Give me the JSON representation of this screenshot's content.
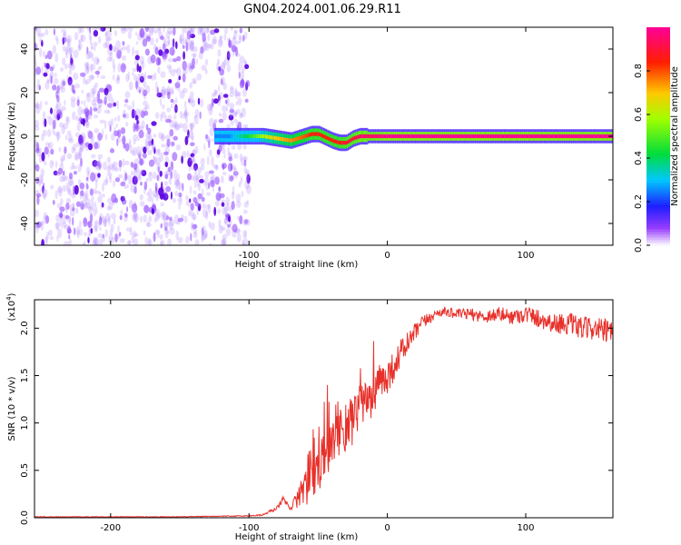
{
  "title": "GN04.2024.001.06.29.R11",
  "colors": {
    "snr_line": "#e8302a",
    "spectral_low": "#6a00ff",
    "spectral_core": "#e0003c",
    "axes": "#000000",
    "background": "#ffffff"
  },
  "chart_data": [
    {
      "type": "heatmap",
      "xlabel": "Height of straight line (km)",
      "ylabel": "Frequency (Hz)",
      "xlim": [
        -255,
        163
      ],
      "ylim": [
        -50,
        50
      ],
      "xticks": [
        -200,
        -100,
        0,
        100
      ],
      "yticks": [
        -40,
        -20,
        0,
        20,
        40
      ],
      "xtick_labels": [
        "-200",
        "-100",
        "0",
        "100"
      ],
      "ytick_labels": [
        "-40",
        "-20",
        "0",
        "20",
        "40"
      ],
      "noise_region_x": [
        -255,
        -100
      ],
      "ridge": {
        "frequency_hz": 0,
        "x": [
          -125,
          -115,
          -100,
          -90,
          -80,
          -70,
          -60,
          -55,
          -50,
          -40,
          -35,
          -30,
          -25,
          -20,
          -10,
          0,
          50,
          100,
          163
        ],
        "center_hz": [
          0,
          0,
          0,
          0,
          -1,
          -2,
          0,
          1,
          1,
          -2,
          -3,
          -3,
          -1,
          0,
          0,
          0,
          0,
          0,
          0
        ],
        "amplitude": [
          0.25,
          0.25,
          0.45,
          0.6,
          0.7,
          0.75,
          0.8,
          0.85,
          0.85,
          0.85,
          0.85,
          0.9,
          0.9,
          0.95,
          0.95,
          1.0,
          1.0,
          1.0,
          1.0
        ]
      },
      "colorbar": {
        "label": "Normalized spectral amplitude",
        "range": [
          0,
          1
        ],
        "ticks": [
          0.0,
          0.2,
          0.4,
          0.6,
          0.8
        ],
        "tick_labels": [
          "0.0",
          "0.2",
          "0.4",
          "0.6",
          "0.8"
        ]
      }
    },
    {
      "type": "line",
      "xlabel": "Height of straight line (km)",
      "ylabel": "SNR (10 * v/v)",
      "yscale_label": "(x10",
      "yscale_exponent": "4",
      "xlim": [
        -255,
        163
      ],
      "ylim": [
        0,
        2.3
      ],
      "xticks": [
        -200,
        -100,
        0,
        100
      ],
      "yticks": [
        0.0,
        0.5,
        1.0,
        1.5,
        2.0
      ],
      "xtick_labels": [
        "-200",
        "-100",
        "0",
        "100"
      ],
      "ytick_labels": [
        "0.0",
        "0.5",
        "1.0",
        "1.5",
        "2.0"
      ],
      "series": [
        {
          "x": [
            -255,
            -200,
            -150,
            -100,
            -90,
            -80,
            -75,
            -70,
            -65,
            -60,
            -55,
            -50,
            -45,
            -40,
            -35,
            -30,
            -25,
            -20,
            -15,
            -10,
            -5,
            0,
            5,
            10,
            15,
            20,
            25,
            30,
            35,
            40,
            50,
            60,
            70,
            80,
            90,
            100,
            110,
            120,
            130,
            140,
            150,
            160,
            163
          ],
          "y": [
            0.01,
            0.01,
            0.01,
            0.02,
            0.03,
            0.1,
            0.2,
            0.1,
            0.2,
            0.35,
            0.45,
            0.55,
            0.7,
            0.85,
            0.95,
            0.95,
            1.0,
            1.15,
            1.2,
            1.3,
            1.4,
            1.5,
            1.6,
            1.75,
            1.85,
            1.95,
            2.05,
            2.1,
            2.15,
            2.18,
            2.15,
            2.15,
            2.12,
            2.15,
            2.12,
            2.15,
            2.1,
            2.05,
            2.05,
            2.0,
            2.0,
            1.95,
            1.95
          ],
          "noise": [
            0.003,
            0.003,
            0.003,
            0.005,
            0.01,
            0.02,
            0.03,
            0.02,
            0.1,
            0.2,
            0.35,
            0.3,
            0.3,
            0.3,
            0.3,
            0.25,
            0.25,
            0.25,
            0.25,
            0.25,
            0.2,
            0.2,
            0.15,
            0.15,
            0.12,
            0.1,
            0.08,
            0.06,
            0.05,
            0.05,
            0.05,
            0.06,
            0.07,
            0.08,
            0.08,
            0.09,
            0.1,
            0.1,
            0.12,
            0.12,
            0.12,
            0.14,
            0.14
          ]
        }
      ]
    }
  ]
}
